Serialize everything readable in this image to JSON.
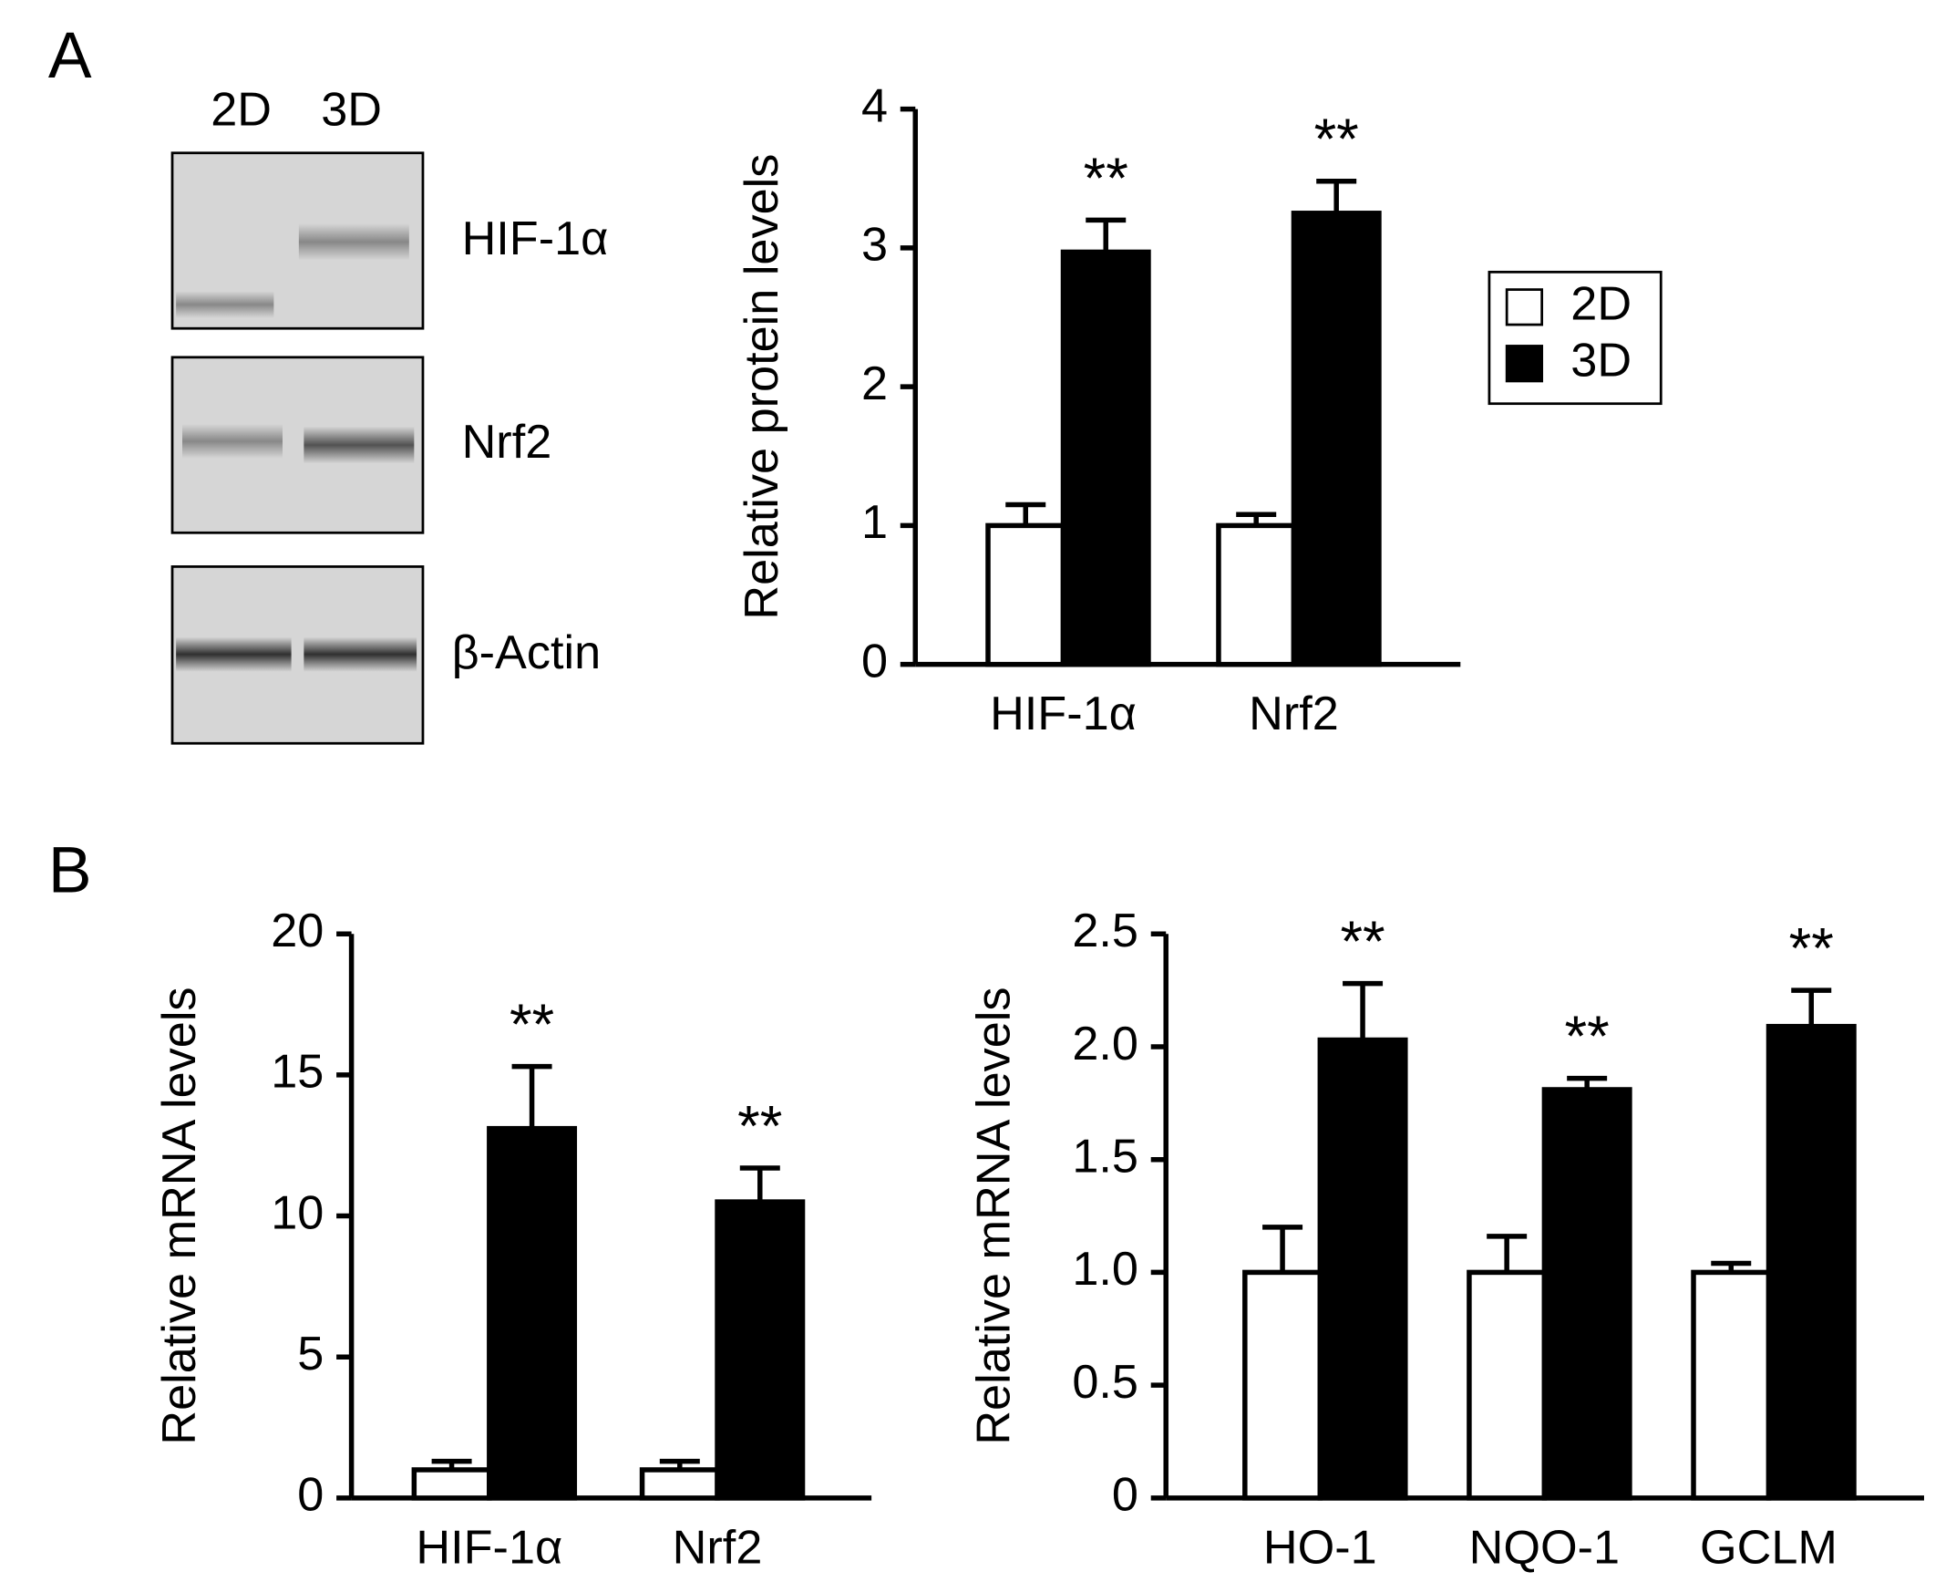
{
  "panel_labels": [
    "A",
    "B"
  ],
  "blot": {
    "lanes": [
      "2D",
      "3D"
    ],
    "bands": [
      "HIF-1α",
      "Nrf2",
      "β-Actin"
    ]
  },
  "chart_data": [
    {
      "type": "bar",
      "y_label": "Relative protein levels",
      "categories": [
        "HIF-1α",
        "Nrf2"
      ],
      "series": [
        {
          "name": "2D",
          "color": "#ffffff",
          "values": [
            1.0,
            1.0
          ],
          "errors": [
            0.15,
            0.08
          ]
        },
        {
          "name": "3D",
          "color": "#000000",
          "values": [
            2.97,
            3.25
          ],
          "errors": [
            0.23,
            0.23
          ],
          "markers": [
            "**",
            "**"
          ]
        }
      ],
      "ylim": [
        0,
        4
      ],
      "yticks": [
        0,
        1,
        2,
        3,
        4
      ],
      "legend": "right"
    },
    {
      "type": "bar",
      "y_label": "Relative mRNA levels",
      "categories": [
        "HIF-1α",
        "Nrf2"
      ],
      "series": [
        {
          "name": "2D",
          "color": "#ffffff",
          "values": [
            1.0,
            1.0
          ],
          "errors": [
            0.3,
            0.3
          ]
        },
        {
          "name": "3D",
          "color": "#000000",
          "values": [
            13.1,
            10.5
          ],
          "errors": [
            2.2,
            1.2
          ],
          "markers": [
            "**",
            "**"
          ]
        }
      ],
      "ylim": [
        0,
        20
      ],
      "yticks": [
        0,
        5,
        10,
        15,
        20
      ]
    },
    {
      "type": "bar",
      "y_label": "Relative mRNA levels",
      "categories": [
        "HO-1",
        "NQO-1",
        "GCLM"
      ],
      "series": [
        {
          "name": "2D",
          "color": "#ffffff",
          "values": [
            1.0,
            1.0,
            1.0
          ],
          "errors": [
            0.2,
            0.16,
            0.04
          ]
        },
        {
          "name": "3D",
          "color": "#000000",
          "values": [
            2.03,
            1.81,
            2.09
          ],
          "errors": [
            0.25,
            0.05,
            0.16
          ],
          "markers": [
            "**",
            "**",
            "**"
          ]
        }
      ],
      "ylim": [
        0,
        2.5
      ],
      "yticks": [
        0,
        0.5,
        {
          "value": 1,
          "label": "1.0"
        },
        1.5,
        {
          "value": 2,
          "label": "2.0"
        },
        2.5
      ]
    }
  ]
}
